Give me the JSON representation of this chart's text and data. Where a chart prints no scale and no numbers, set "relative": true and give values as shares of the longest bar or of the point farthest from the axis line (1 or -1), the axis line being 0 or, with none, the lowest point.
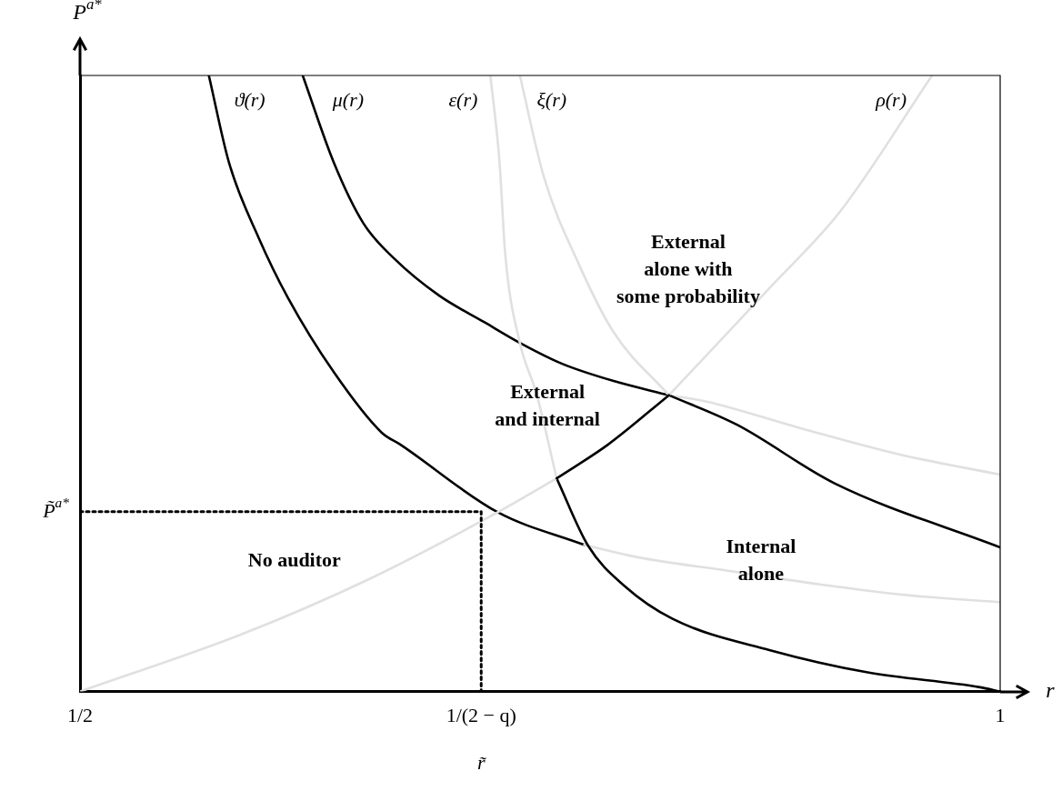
{
  "chart_data": {
    "type": "line",
    "relative": true,
    "xlabel": "r",
    "ylabel": "P$^{a*}$",
    "xlim": [
      0.5,
      1
    ],
    "xticks": [
      {
        "value": 0.5,
        "label": "1/2"
      },
      {
        "value": 0.718,
        "label": "1/(2 − q)"
      },
      {
        "value": 1,
        "label": "1"
      }
    ],
    "grid": false,
    "legend": false,
    "marker": "none",
    "series": [
      {
        "name": "ϑ(r)",
        "color": "#000000",
        "x": [
          0.57,
          0.581,
          0.597,
          0.613,
          0.638,
          0.664,
          0.674,
          0.727,
          0.774
        ],
        "values": [
          1,
          0.858,
          0.737,
          0.639,
          0.518,
          0.42,
          0.401,
          0.291,
          0.238
        ]
      },
      {
        "color": "#e0e0e0",
        "x": [
          0.774,
          0.803,
          0.852,
          0.902,
          0.951,
          1.0
        ],
        "values": [
          0.238,
          0.218,
          0.196,
          0.174,
          0.156,
          0.145
        ]
      },
      {
        "name": "μ(r)",
        "color": "#000000",
        "x": [
          0.621,
          0.638,
          0.654,
          0.671,
          0.695,
          0.72,
          0.739,
          0.762,
          0.79,
          0.82
        ],
        "values": [
          1,
          0.858,
          0.76,
          0.702,
          0.643,
          0.599,
          0.566,
          0.532,
          0.504,
          0.481
        ]
      },
      {
        "color": "#e0e0e0",
        "x": [
          0.82,
          0.84,
          0.892,
          0.945,
          1.0
        ],
        "values": [
          0.481,
          0.471,
          0.427,
          0.385,
          0.352
        ]
      },
      {
        "name": "ε(r)",
        "color": "#e0e0e0",
        "x": [
          0.723,
          0.728,
          0.731,
          0.739,
          0.748,
          0.759
        ],
        "values": [
          1,
          0.858,
          0.712,
          0.566,
          0.484,
          0.346
        ]
      },
      {
        "color": "#000000",
        "x": [
          0.759,
          0.776,
          0.796,
          0.822,
          0.875,
          0.928,
          0.989,
          1.0
        ],
        "values": [
          0.346,
          0.237,
          0.171,
          0.118,
          0.067,
          0.031,
          0.007,
          0
        ]
      },
      {
        "name": "ξ(r)",
        "color": "#e0e0e0",
        "x": [
          0.739,
          0.752,
          0.771,
          0.79,
          0.82
        ],
        "values": [
          1,
          0.836,
          0.694,
          0.583,
          0.481
        ]
      },
      {
        "color": "#000000",
        "x": [
          0.82,
          0.857,
          0.91,
          1.0
        ],
        "values": [
          0.481,
          0.433,
          0.338,
          0.234
        ]
      },
      {
        "name": "ρ(r)",
        "color": "#e0e0e0",
        "x": [
          0.82,
          0.875,
          0.913,
          0.963
        ],
        "values": [
          0.481,
          0.656,
          0.779,
          1
        ]
      },
      {
        "color": "#e0e0e0",
        "x": [
          0.5,
          0.587,
          0.656,
          0.727,
          0.759
        ],
        "values": [
          0,
          0.092,
          0.181,
          0.291,
          0.346
        ]
      },
      {
        "color": "#000000",
        "x": [
          0.759,
          0.787,
          0.82
        ],
        "values": [
          0.346,
          0.401,
          0.481
        ]
      },
      {
        "color": "#000000",
        "line_style": "dotted",
        "x": [
          0.5,
          0.718,
          0.718
        ],
        "values": [
          0.292,
          0.292,
          0
        ]
      }
    ],
    "annotations": [
      "No auditor",
      "External\nand internal",
      "External\nalone with\nsome probability",
      "Internal\nalone",
      {
        "text": "P̃$^{a*}$",
        "x": 0.5,
        "y": 0.292
      },
      {
        "text": "r̃",
        "x": 0.718,
        "y": 0
      }
    ]
  }
}
